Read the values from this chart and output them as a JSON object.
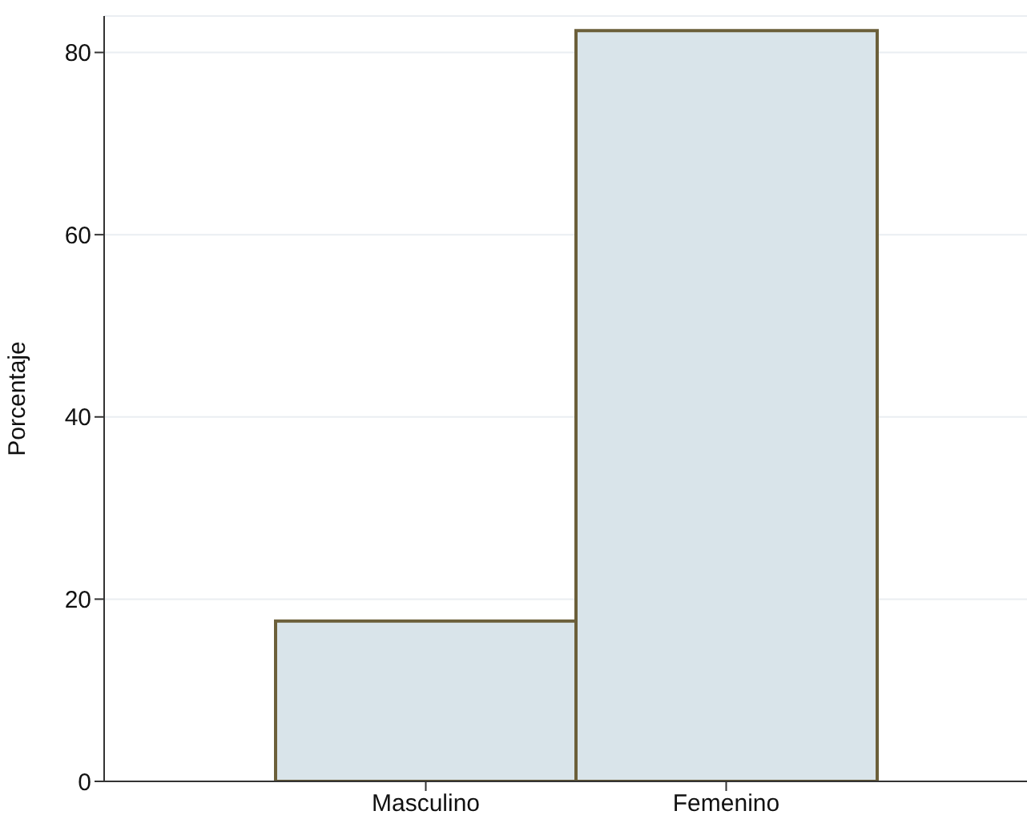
{
  "chart_data": {
    "type": "bar",
    "ylabel": "Porcentaje",
    "categories": [
      "Masculino",
      "Femenino"
    ],
    "values": [
      17.6,
      82.4
    ],
    "color": "#d9e4ea",
    "ylim": [
      0,
      84
    ],
    "yticks": [
      0,
      20,
      40,
      60,
      80
    ],
    "grid": "y"
  }
}
